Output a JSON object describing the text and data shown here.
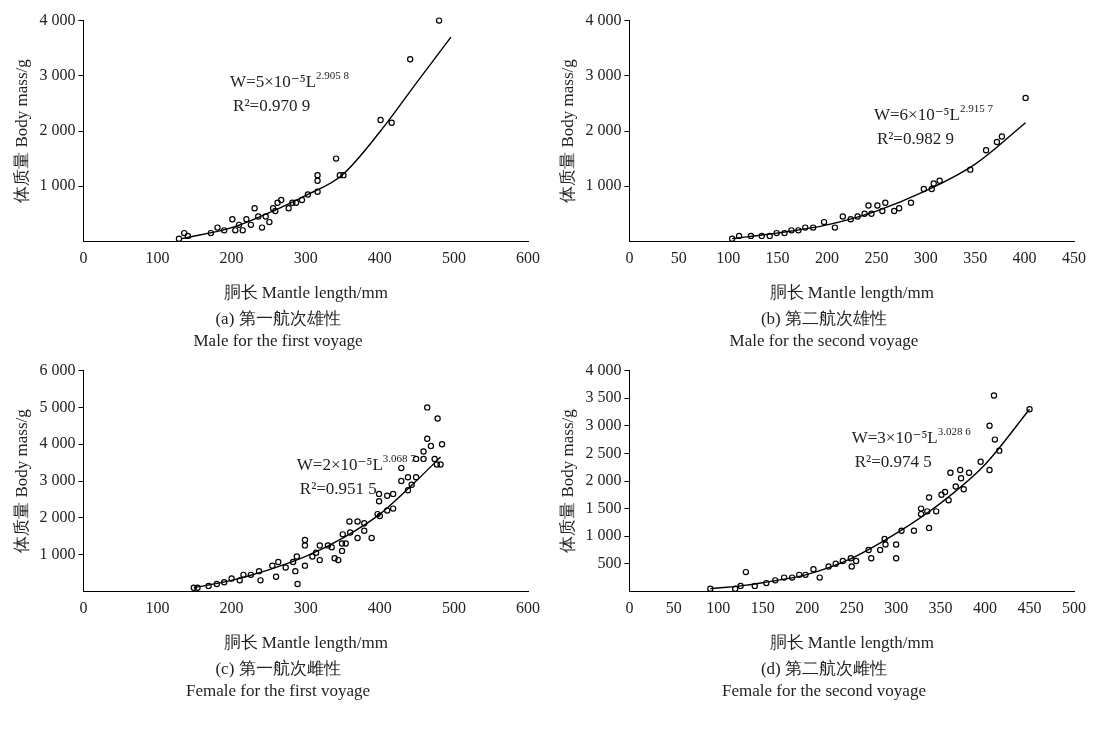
{
  "chart_data": [
    {
      "type": "scatter",
      "xlabel": "胴长 Mantle length/mm",
      "ylabel": "体质量 Body mass/g",
      "xlim": [
        0,
        600
      ],
      "xticks": [
        0,
        100,
        200,
        300,
        400,
        500,
        600
      ],
      "ylim": [
        0,
        4000
      ],
      "yticks": [
        {
          "value": 1000,
          "label": "1 000"
        },
        {
          "value": 2000,
          "label": "2 000"
        },
        {
          "value": 3000,
          "label": "3 000"
        },
        {
          "value": 4000,
          "label": "4 000"
        }
      ],
      "grid": false,
      "legend": false,
      "marker": "circle",
      "annotations": [
        "W=5×10⁻⁵L$^{2.905 8}$",
        "R²=0.970 9",
        "(a) 第一航次雄性",
        "Male for the first voyage"
      ],
      "series": [
        {
          "color": "#000000",
          "x": [
            480,
            441,
            401,
            416,
            341,
            346,
            351,
            316,
            316,
            316,
            303,
            295,
            282,
            267,
            256,
            231,
            241,
            201,
            181,
            172,
            136,
            129,
            141,
            210,
            220,
            236,
            246,
            259,
            277,
            215,
            226,
            251,
            190,
            205,
            262,
            287
          ],
          "values": [
            4000,
            3300,
            2200,
            2150,
            1500,
            1200,
            1200,
            1200,
            1100,
            900,
            850,
            750,
            700,
            750,
            600,
            600,
            250,
            400,
            250,
            150,
            150,
            50,
            100,
            300,
            400,
            450,
            450,
            550,
            600,
            200,
            300,
            350,
            200,
            200,
            700,
            700
          ]
        },
        {
          "type": "line",
          "color": "#000000",
          "marker": "none",
          "x": [
            133,
            200,
            256,
            303,
            349,
            401,
            451,
            496
          ],
          "values": [
            50,
            250,
            550,
            850,
            1200,
            2000,
            2900,
            3700
          ]
        }
      ]
    },
    {
      "type": "scatter",
      "xlabel": "胴长 Mantle length/mm",
      "ylabel": "体质量 Body mass/g",
      "xlim": [
        0,
        450
      ],
      "xticks": [
        0,
        50,
        100,
        150,
        200,
        250,
        300,
        350,
        400,
        450
      ],
      "ylim": [
        0,
        4000
      ],
      "yticks": [
        {
          "value": 1000,
          "label": "1 000"
        },
        {
          "value": 2000,
          "label": "2 000"
        },
        {
          "value": 3000,
          "label": "3 000"
        },
        {
          "value": 4000,
          "label": "4 000"
        }
      ],
      "grid": false,
      "legend": false,
      "marker": "circle",
      "annotations": [
        "W=6×10⁻⁵L$^{2.915 7}$",
        "R²=0.982 9",
        "(b) 第二航次雄性",
        "Male for the second voyage"
      ],
      "series": [
        {
          "color": "#000000",
          "x": [
            401,
            377,
            372,
            361,
            345,
            314,
            308,
            306,
            298,
            285,
            273,
            268,
            259,
            251,
            242,
            245,
            231,
            216,
            208,
            197,
            186,
            171,
            157,
            142,
            123,
            111,
            104,
            178,
            164,
            149,
            134,
            224,
            238,
            256
          ],
          "values": [
            2600,
            1900,
            1800,
            1650,
            1300,
            1100,
            1050,
            950,
            950,
            700,
            600,
            550,
            700,
            650,
            650,
            500,
            450,
            450,
            250,
            350,
            250,
            200,
            150,
            100,
            100,
            100,
            50,
            250,
            200,
            150,
            100,
            400,
            500,
            550
          ]
        },
        {
          "type": "line",
          "color": "#000000",
          "marker": "none",
          "x": [
            104,
            149,
            200,
            250,
            298,
            350,
            401
          ],
          "values": [
            50,
            150,
            300,
            550,
            900,
            1400,
            2150
          ]
        }
      ]
    },
    {
      "type": "scatter",
      "xlabel": "胴长 Mantle length/mm",
      "ylabel": "体质量 Body mass/g",
      "xlim": [
        0,
        600
      ],
      "xticks": [
        0,
        100,
        200,
        300,
        400,
        500,
        600
      ],
      "ylim": [
        0,
        6000
      ],
      "yticks": [
        {
          "value": 1000,
          "label": "1 000"
        },
        {
          "value": 2000,
          "label": "2 000"
        },
        {
          "value": 3000,
          "label": "3 000"
        },
        {
          "value": 4000,
          "label": "4 000"
        },
        {
          "value": 5000,
          "label": "5 000"
        },
        {
          "value": 6000,
          "label": "6 000"
        }
      ],
      "grid": false,
      "legend": false,
      "marker": "circle",
      "annotations": [
        "W=2×10⁻⁵L$^{3.068 7}$",
        "R²=0.951 5",
        "(c) 第一航次雌性",
        "Female for the first voyage"
      ],
      "series": [
        {
          "color": "#000000",
          "x": [
            464,
            478,
            464,
            469,
            484,
            459,
            449,
            459,
            474,
            482,
            477,
            429,
            438,
            449,
            429,
            443,
            438,
            399,
            399,
            410,
            418,
            418,
            410,
            397,
            400,
            379,
            370,
            359,
            379,
            389,
            370,
            360,
            350,
            349,
            354,
            349,
            344,
            339,
            335,
            330,
            319,
            314,
            319,
            309,
            299,
            299,
            299,
            289,
            288,
            283,
            286,
            273,
            263,
            255,
            260,
            239,
            237,
            226,
            216,
            211,
            200,
            190,
            180,
            169,
            154,
            149
          ],
          "values": [
            5000,
            4700,
            4150,
            3950,
            4000,
            3800,
            3600,
            3600,
            3600,
            3450,
            3450,
            3350,
            3100,
            3100,
            3000,
            2900,
            2750,
            2650,
            2450,
            2600,
            2650,
            2250,
            2200,
            2100,
            2050,
            1850,
            1900,
            1900,
            1650,
            1450,
            1450,
            1600,
            1550,
            1300,
            1300,
            1100,
            850,
            900,
            1200,
            1250,
            1250,
            1050,
            850,
            950,
            1400,
            1250,
            700,
            200,
            950,
            800,
            550,
            650,
            800,
            700,
            400,
            300,
            550,
            450,
            450,
            300,
            350,
            250,
            200,
            150,
            100,
            100
          ]
        },
        {
          "type": "line",
          "color": "#000000",
          "marker": "none",
          "x": [
            149,
            200,
            252,
            300,
            350,
            400,
            449,
            482
          ],
          "values": [
            100,
            300,
            600,
            950,
            1450,
            2100,
            3000,
            3650
          ]
        }
      ]
    },
    {
      "type": "scatter",
      "xlabel": "胴长 Mantle length/mm",
      "ylabel": "体质量 Body mass/g",
      "xlim": [
        0,
        500
      ],
      "xticks": [
        0,
        50,
        100,
        150,
        200,
        250,
        300,
        350,
        400,
        450,
        500
      ],
      "ylim": [
        0,
        4000
      ],
      "yticks": [
        {
          "value": 500,
          "label": "500"
        },
        {
          "value": 1000,
          "label": "1 000"
        },
        {
          "value": 1500,
          "label": "1 500"
        },
        {
          "value": 2000,
          "label": "2 000"
        },
        {
          "value": 2500,
          "label": "2 500"
        },
        {
          "value": 3000,
          "label": "3 000"
        },
        {
          "value": 3500,
          "label": "3 500"
        },
        {
          "value": 4000,
          "label": "4 000"
        }
      ],
      "grid": false,
      "legend": false,
      "marker": "circle",
      "annotations": [
        "W=3×10⁻⁵L$^{3.028 6}$",
        "R²=0.974 5",
        "(d) 第二航次雌性",
        "Female for the second voyage"
      ],
      "series": [
        {
          "color": "#000000",
          "x": [
            450,
            410,
            405,
            411,
            416,
            395,
            405,
            372,
            382,
            361,
            373,
            376,
            367,
            355,
            351,
            359,
            337,
            345,
            328,
            328,
            335,
            337,
            320,
            306,
            300,
            300,
            287,
            288,
            282,
            269,
            272,
            255,
            250,
            249,
            240,
            224,
            214,
            207,
            191,
            174,
            164,
            154,
            141,
            131,
            125,
            119,
            91,
            183,
            198,
            232
          ],
          "values": [
            3300,
            3550,
            3000,
            2750,
            2550,
            2350,
            2200,
            2200,
            2150,
            2150,
            2050,
            1850,
            1900,
            1800,
            1750,
            1650,
            1700,
            1450,
            1500,
            1400,
            1450,
            1150,
            1100,
            1100,
            850,
            600,
            950,
            850,
            750,
            750,
            600,
            550,
            450,
            600,
            550,
            450,
            250,
            400,
            300,
            250,
            200,
            150,
            100,
            350,
            100,
            50,
            50,
            250,
            300,
            500
          ]
        },
        {
          "type": "line",
          "color": "#000000",
          "marker": "none",
          "x": [
            91,
            125,
            166,
            198,
            250,
            300,
            350,
            400,
            450
          ],
          "values": [
            50,
            100,
            200,
            300,
            600,
            1050,
            1600,
            2300,
            3300
          ]
        }
      ]
    }
  ]
}
